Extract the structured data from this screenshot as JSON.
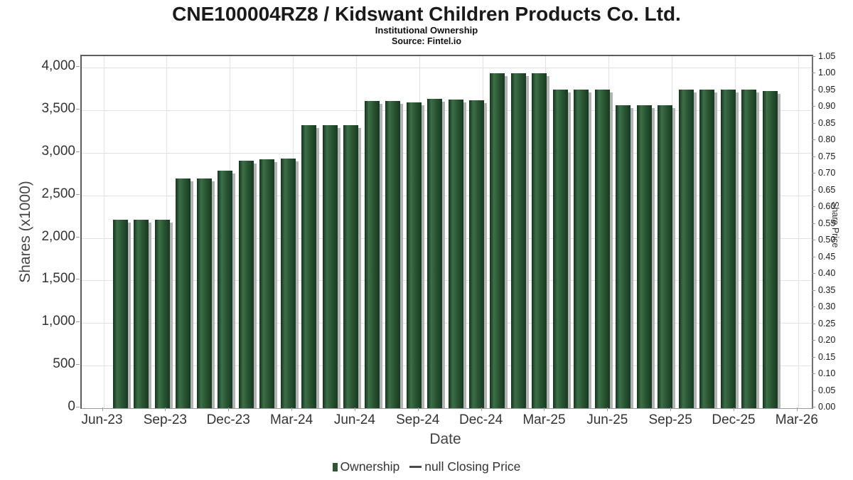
{
  "chart_data": {
    "type": "bar",
    "title": "CNE100004RZ8 / Kidswant Children Products Co. Ltd.",
    "subtitle": "Institutional Ownership",
    "source": "Source: Fintel.io",
    "xlabel": "Date",
    "ylabel_left": "Shares (x1000)",
    "ylabel_right": "Share Price",
    "ylim_left": [
      0,
      4130
    ],
    "ylim_right": [
      0,
      1.05
    ],
    "grid": true,
    "legend_position": "bottom-center",
    "y_left_tick_labels": [
      "0",
      "500",
      "1,000",
      "1,500",
      "2,000",
      "2,500",
      "3,000",
      "3,500",
      "4,000"
    ],
    "y_left_tick_values": [
      0,
      500,
      1000,
      1500,
      2000,
      2500,
      3000,
      3500,
      4000
    ],
    "y_right_tick_labels": [
      "0.00",
      "0.05",
      "0.10",
      "0.15",
      "0.20",
      "0.25",
      "0.30",
      "0.35",
      "0.40",
      "0.45",
      "0.50",
      "0.55",
      "0.60",
      "0.65",
      "0.70",
      "0.75",
      "0.80",
      "0.85",
      "0.90",
      "0.95",
      "1.00",
      "1.05"
    ],
    "x_quarter_ticks": [
      "Jun-23",
      "Sep-23",
      "Dec-23",
      "Mar-24",
      "Jun-24",
      "Sep-24",
      "Dec-24",
      "Mar-25",
      "Jun-25",
      "Sep-25",
      "Dec-25",
      "Mar-26"
    ],
    "series": [
      {
        "name": "Ownership",
        "type": "bar",
        "months": [
          "Jul-23",
          "Aug-23",
          "Sep-23",
          "Oct-23",
          "Nov-23",
          "Dec-23",
          "Jan-24",
          "Feb-24",
          "Mar-24",
          "Apr-24",
          "May-24",
          "Jun-24",
          "Jul-24",
          "Aug-24",
          "Sep-24",
          "Oct-24",
          "Nov-24",
          "Dec-24",
          "Jan-25",
          "Feb-25",
          "Mar-25",
          "Apr-25",
          "May-25",
          "Jun-25",
          "Jul-25",
          "Aug-25",
          "Sep-25",
          "Oct-25",
          "Nov-25",
          "Dec-25",
          "Jan-26",
          "Feb-26"
        ],
        "values": [
          2210,
          2210,
          2215,
          2700,
          2700,
          2790,
          2910,
          2920,
          2930,
          3320,
          3320,
          3320,
          3605,
          3610,
          3595,
          3630,
          3625,
          3620,
          3930,
          3930,
          3930,
          3745,
          3745,
          3745,
          3560,
          3560,
          3560,
          3740,
          3740,
          3740,
          3740,
          3725
        ]
      },
      {
        "name": "null Closing Price",
        "type": "line",
        "values": []
      }
    ],
    "legend": [
      {
        "label": "Ownership",
        "marker": "square",
        "color": "#2d5733"
      },
      {
        "label": "null Closing Price",
        "marker": "dash",
        "color": "#4a4a4a"
      }
    ],
    "colors": {
      "bar_main": "#2a5634",
      "bar_gradient": [
        "#16331e",
        "#3d6f47",
        "#2a5634",
        "#173a20"
      ],
      "bar_shadow": "#b3b3b3",
      "gridline": "#e2e2e2",
      "axis_border": "#5d5d5d",
      "tick": "#9a9a9a",
      "text": "#333333"
    }
  }
}
